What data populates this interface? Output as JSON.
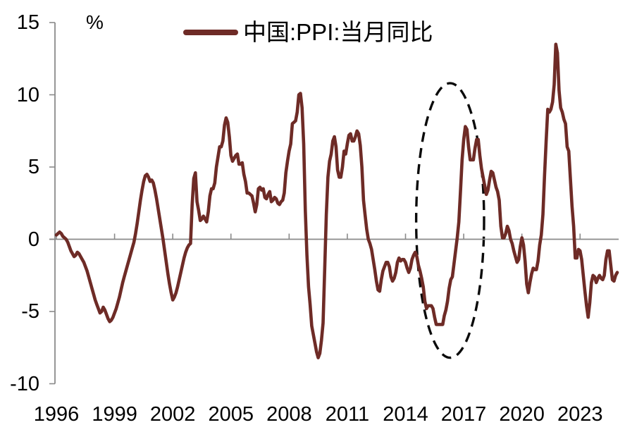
{
  "legend": {
    "label": "中国:PPI:当月同比"
  },
  "axes": {
    "y_unit_label": "%",
    "y_ticks": [
      15,
      10,
      5,
      0,
      -5,
      -10
    ],
    "x_tick_years": [
      1996,
      1999,
      2002,
      2005,
      2008,
      2011,
      2014,
      2017,
      2020,
      2023
    ]
  },
  "colors": {
    "line": "#6E2B26",
    "axis": "#8A8A8A",
    "text": "#000000",
    "annotation": "#0a0a0a"
  },
  "chart_data": {
    "type": "line",
    "title": "中国:PPI:当月同比",
    "ylabel": "%",
    "ylim": [
      -10,
      15
    ],
    "grid": false,
    "legend_position": "top-center",
    "frequency": "monthly",
    "x_start_year": 1996,
    "x_end_year": 2024,
    "x_tick_labels": [
      "1996",
      "1999",
      "2002",
      "2005",
      "2008",
      "2011",
      "2014",
      "2017",
      "2020",
      "2023"
    ],
    "series": [
      {
        "name": "中国:PPI:当月同比",
        "color": "#6E2B26",
        "values": [
          0.3,
          0.4,
          0.5,
          0.4,
          0.2,
          0.1,
          0.0,
          -0.2,
          -0.5,
          -0.8,
          -1.0,
          -1.2,
          -1.1,
          -0.9,
          -1.0,
          -1.2,
          -1.4,
          -1.6,
          -1.9,
          -2.2,
          -2.6,
          -3.0,
          -3.4,
          -3.8,
          -4.2,
          -4.5,
          -4.8,
          -5.1,
          -5.0,
          -4.7,
          -4.9,
          -5.2,
          -5.5,
          -5.7,
          -5.6,
          -5.4,
          -5.1,
          -4.8,
          -4.4,
          -4.0,
          -3.5,
          -3.0,
          -2.6,
          -2.2,
          -1.8,
          -1.4,
          -1.0,
          -0.6,
          -0.2,
          0.4,
          1.1,
          1.9,
          2.7,
          3.4,
          4.0,
          4.4,
          4.5,
          4.3,
          4.0,
          4.1,
          3.9,
          3.4,
          2.8,
          2.1,
          1.4,
          0.7,
          0.0,
          -0.8,
          -1.6,
          -2.4,
          -3.1,
          -3.7,
          -4.2,
          -4.0,
          -3.7,
          -3.3,
          -2.8,
          -2.3,
          -1.8,
          -1.3,
          -0.9,
          -0.6,
          -0.4,
          -0.3,
          2.4,
          4.2,
          4.6,
          2.6,
          2.0,
          1.3,
          1.4,
          1.6,
          1.4,
          1.2,
          1.9,
          3.0,
          3.5,
          3.5,
          3.9,
          5.0,
          5.7,
          6.4,
          6.4,
          6.8,
          7.9,
          8.4,
          8.1,
          7.1,
          5.8,
          5.4,
          5.6,
          5.8,
          5.9,
          5.2,
          5.2,
          5.3,
          4.5,
          4.0,
          3.2,
          3.2,
          3.1,
          3.0,
          2.5,
          1.9,
          2.4,
          3.5,
          3.6,
          3.4,
          3.5,
          2.9,
          2.8,
          3.1,
          3.3,
          2.6,
          2.7,
          2.9,
          2.8,
          2.5,
          2.4,
          2.6,
          2.7,
          3.2,
          4.6,
          5.4,
          6.1,
          6.6,
          8.0,
          8.1,
          8.2,
          8.8,
          10.0,
          10.1,
          9.1,
          6.6,
          2.0,
          -1.1,
          -3.3,
          -4.5,
          -6.0,
          -6.6,
          -7.2,
          -7.8,
          -8.2,
          -7.9,
          -7.0,
          -5.8,
          -2.1,
          1.7,
          4.3,
          5.4,
          5.9,
          6.8,
          7.1,
          6.4,
          4.8,
          4.3,
          4.3,
          5.0,
          6.1,
          5.9,
          6.6,
          7.2,
          7.3,
          6.8,
          6.8,
          7.1,
          7.5,
          7.3,
          6.5,
          5.0,
          2.7,
          1.7,
          0.7,
          0.0,
          -0.3,
          -0.7,
          -1.4,
          -2.1,
          -2.9,
          -3.5,
          -3.6,
          -2.8,
          -2.2,
          -1.9,
          -1.6,
          -1.6,
          -1.9,
          -2.6,
          -2.9,
          -2.7,
          -2.3,
          -1.6,
          -1.3,
          -1.5,
          -1.4,
          -1.4,
          -1.6,
          -2.0,
          -2.3,
          -2.0,
          -1.4,
          -1.1,
          -0.9,
          -1.2,
          -1.8,
          -2.2,
          -2.7,
          -3.3,
          -4.3,
          -4.8,
          -4.6,
          -4.6,
          -4.6,
          -4.8,
          -5.4,
          -5.9,
          -5.9,
          -5.9,
          -5.9,
          -5.9,
          -5.3,
          -4.9,
          -4.3,
          -3.4,
          -2.8,
          -2.6,
          -1.7,
          -0.8,
          0.1,
          1.2,
          3.3,
          5.5,
          6.9,
          7.8,
          7.6,
          6.4,
          5.5,
          5.5,
          5.5,
          6.3,
          6.9,
          6.9,
          5.8,
          4.9,
          4.3,
          3.7,
          3.1,
          3.4,
          4.1,
          4.7,
          4.6,
          4.1,
          3.6,
          3.3,
          2.7,
          0.9,
          0.1,
          0.1,
          0.4,
          0.9,
          0.6,
          0.0,
          -0.3,
          -0.8,
          -1.2,
          -1.6,
          -1.4,
          -0.5,
          0.1,
          -0.4,
          -1.5,
          -3.1,
          -3.7,
          -3.0,
          -2.4,
          -2.0,
          -2.1,
          -2.1,
          -1.5,
          -0.4,
          0.3,
          1.7,
          4.4,
          6.8,
          9.0,
          8.8,
          9.0,
          9.5,
          10.7,
          13.5,
          12.9,
          10.3,
          9.1,
          8.8,
          8.3,
          8.0,
          6.4,
          6.1,
          4.2,
          2.3,
          0.9,
          -1.3,
          -1.3,
          -0.7,
          -0.8,
          -1.4,
          -2.5,
          -3.6,
          -4.6,
          -5.4,
          -4.4,
          -3.0,
          -2.5,
          -2.6,
          -3.0,
          -2.7,
          -2.5,
          -2.7,
          -2.8,
          -2.5,
          -1.4,
          -0.8,
          -0.8,
          -1.8,
          -2.8,
          -2.9,
          -2.5,
          -2.3
        ]
      }
    ],
    "annotations": [
      {
        "shape": "dashed-ellipse",
        "x_center_year": 2016.3,
        "x_half_width_years": 1.75,
        "y_center": 1.3,
        "y_half_height": 9.5
      }
    ]
  }
}
